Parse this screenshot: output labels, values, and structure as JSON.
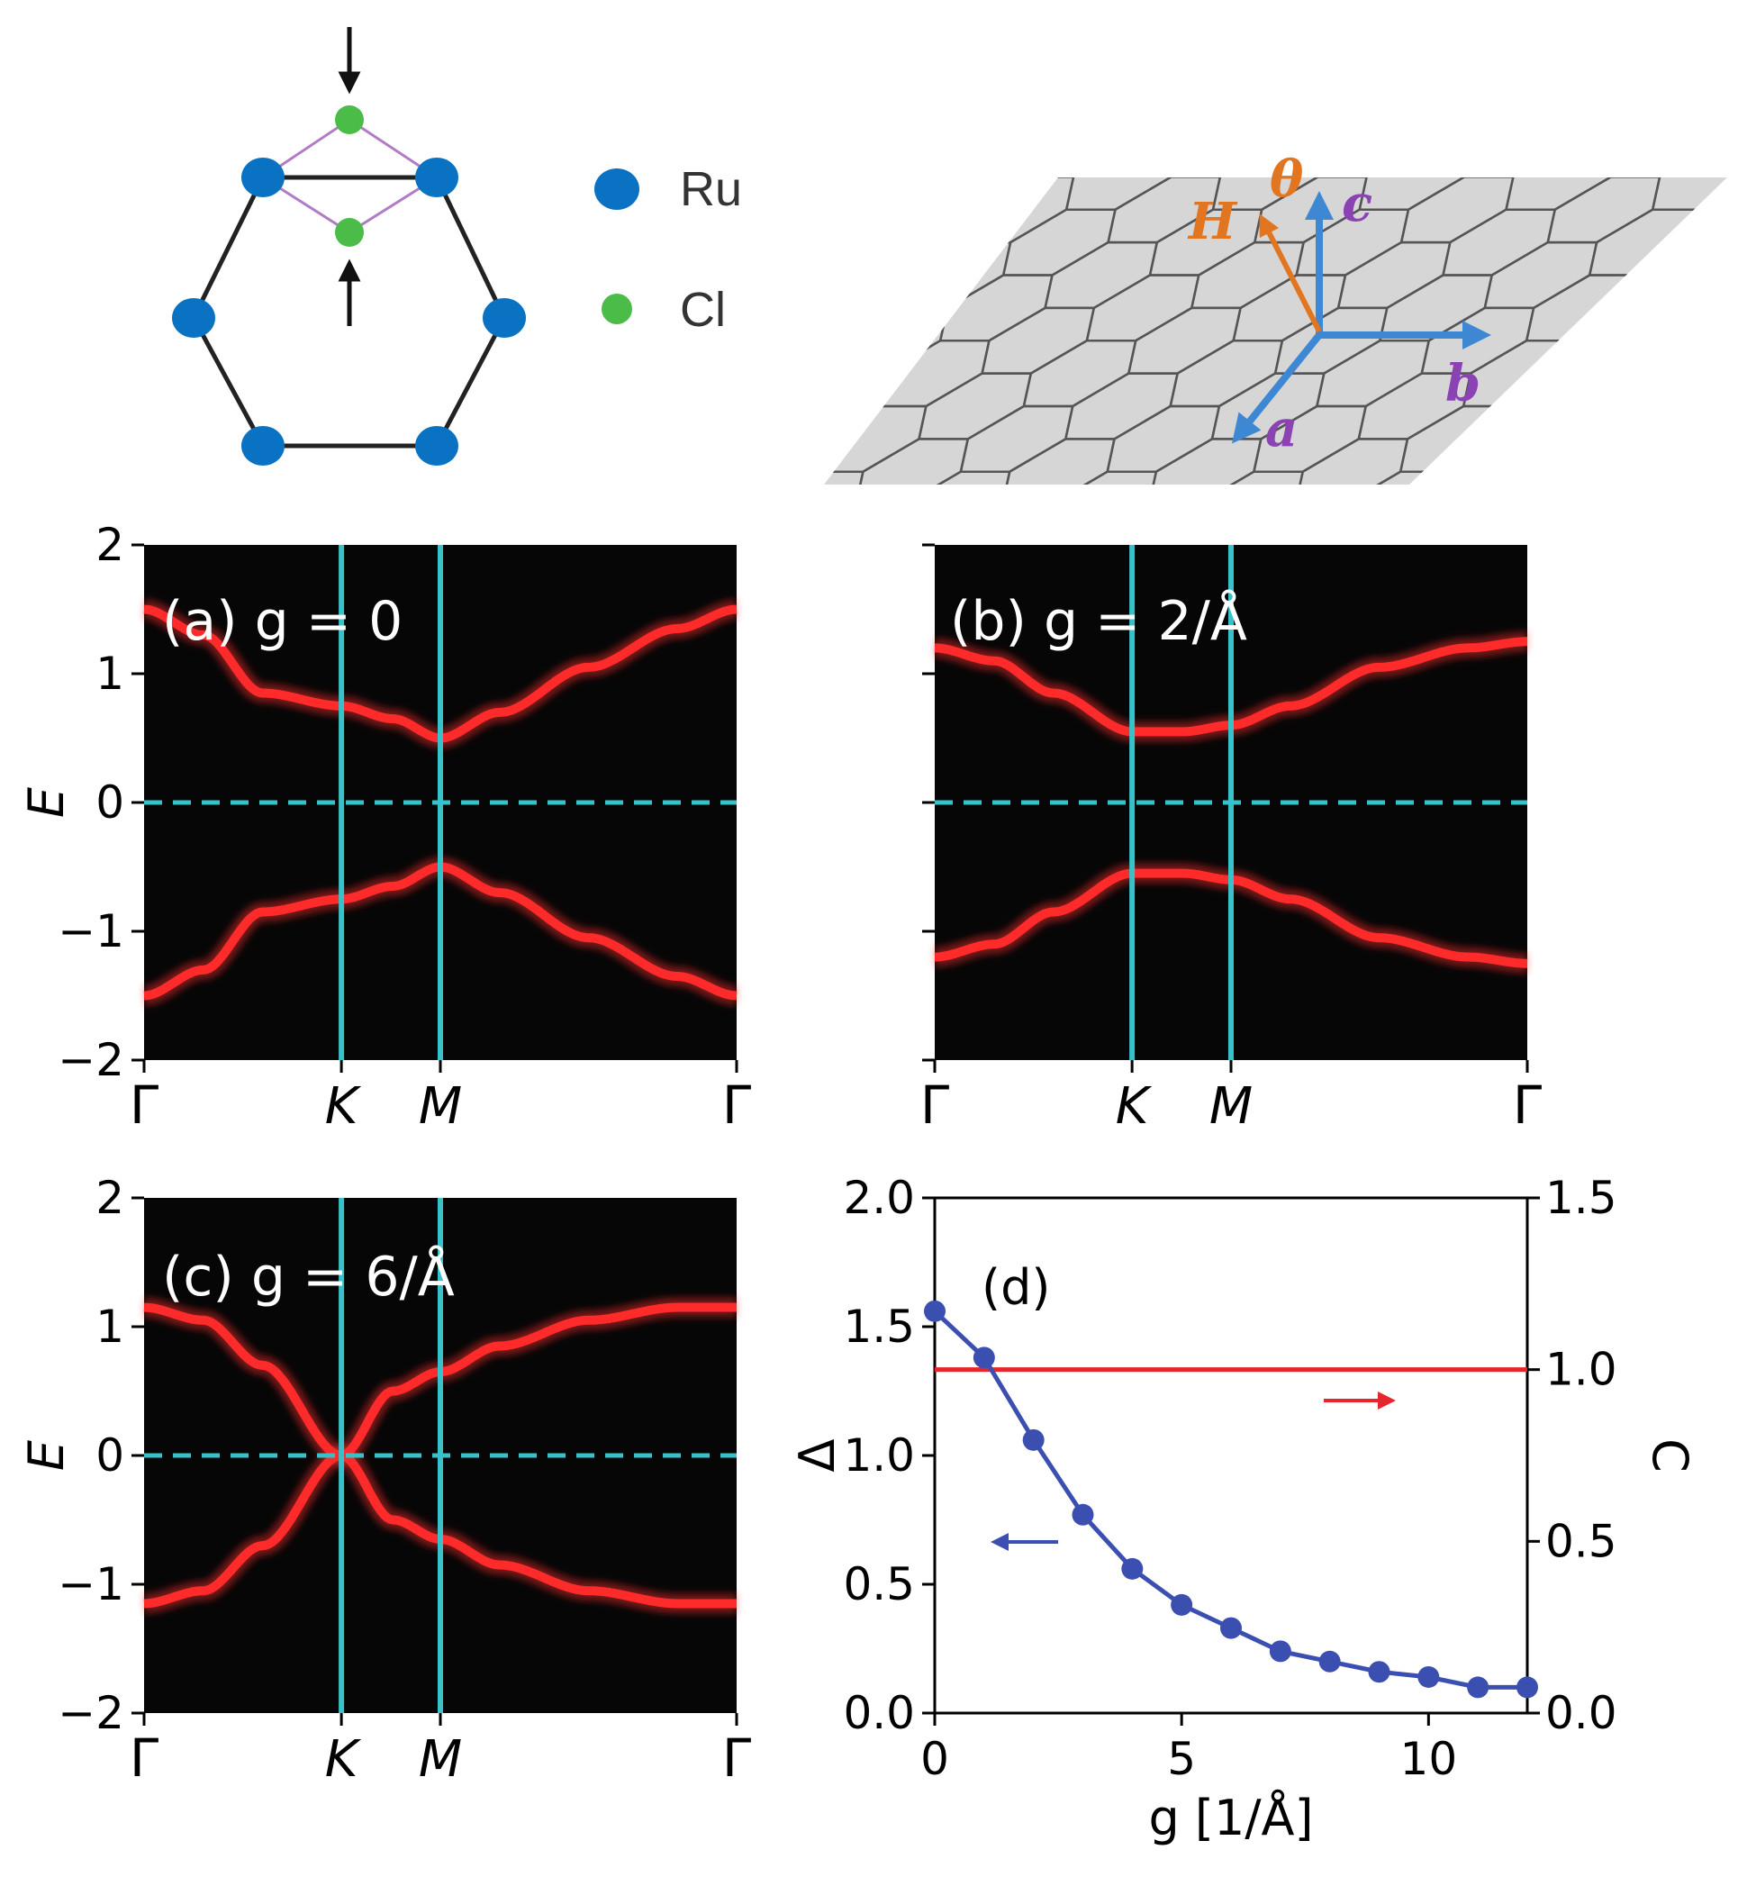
{
  "top_left": {
    "legend": [
      {
        "label": "Ru",
        "color": "#0a72c2"
      },
      {
        "label": "Cl",
        "color": "#4cbc49"
      }
    ],
    "bond_color": "#222222",
    "cl_bond_color": "#b07cc6"
  },
  "top_right": {
    "labels": {
      "theta": "θ",
      "H": "H",
      "c": "c",
      "b": "b",
      "a": "a"
    },
    "colors": {
      "axis": "#3e87d3",
      "field": "#e2751f",
      "label_purple": "#8b42b3",
      "plane": "#d6d6d6"
    }
  },
  "chart_data": [
    {
      "id": "a",
      "type": "heatmap",
      "title": "(a) g = 0",
      "ylabel": "E",
      "ylim": [
        -2,
        2
      ],
      "yticks": [
        "2",
        "1",
        "0",
        "−1",
        "−2"
      ],
      "xticks": [
        "Γ",
        "K",
        "M",
        "Γ"
      ],
      "x": [
        0,
        0.333,
        0.5,
        1.0
      ],
      "band_points": [
        0,
        0.1,
        0.2,
        0.333,
        0.42,
        0.5,
        0.6,
        0.75,
        0.9,
        1.0
      ],
      "band_upper": [
        1.5,
        1.3,
        0.85,
        0.75,
        0.65,
        0.5,
        0.7,
        1.05,
        1.35,
        1.5
      ],
      "band_lower": [
        -1.5,
        -1.3,
        -0.85,
        -0.75,
        -0.65,
        -0.5,
        -0.7,
        -1.05,
        -1.35,
        -1.5
      ],
      "colors": {
        "band": "#ff2a2a",
        "kline": "#36c2c8"
      }
    },
    {
      "id": "b",
      "type": "heatmap",
      "title": "(b) g = 2/Å",
      "ylim": [
        -2,
        2
      ],
      "xticks": [
        "Γ",
        "K",
        "M",
        "Γ"
      ],
      "x": [
        0,
        0.333,
        0.5,
        1.0
      ],
      "band_points": [
        0,
        0.1,
        0.2,
        0.333,
        0.42,
        0.5,
        0.6,
        0.75,
        0.9,
        1.0
      ],
      "band_upper": [
        1.2,
        1.1,
        0.85,
        0.55,
        0.55,
        0.6,
        0.75,
        1.05,
        1.2,
        1.25
      ],
      "band_lower": [
        -1.2,
        -1.1,
        -0.85,
        -0.55,
        -0.55,
        -0.6,
        -0.75,
        -1.05,
        -1.2,
        -1.25
      ],
      "colors": {
        "band": "#ff2a2a",
        "kline": "#36c2c8"
      }
    },
    {
      "id": "c",
      "type": "heatmap",
      "title": "(c) g = 6/Å",
      "ylabel": "E",
      "ylim": [
        -2,
        2
      ],
      "yticks": [
        "2",
        "1",
        "0",
        "−1",
        "−2"
      ],
      "xticks": [
        "Γ",
        "K",
        "M",
        "Γ"
      ],
      "x": [
        0,
        0.333,
        0.5,
        1.0
      ],
      "band_points": [
        0,
        0.1,
        0.2,
        0.333,
        0.42,
        0.5,
        0.6,
        0.75,
        0.9,
        1.0
      ],
      "band_upper": [
        1.15,
        1.05,
        0.7,
        0.0,
        0.5,
        0.65,
        0.85,
        1.05,
        1.15,
        1.15
      ],
      "band_lower": [
        -1.15,
        -1.05,
        -0.7,
        0.0,
        -0.5,
        -0.65,
        -0.85,
        -1.05,
        -1.15,
        -1.15
      ],
      "colors": {
        "band": "#ff2a2a",
        "kline": "#36c2c8"
      }
    },
    {
      "id": "d",
      "type": "line",
      "title": "(d)",
      "xlabel": "g [1/Å]",
      "ylabel": "Δ",
      "y2label": "C",
      "xlim": [
        0,
        12
      ],
      "ylim": [
        0,
        2.0
      ],
      "y2lim": [
        0,
        1.5
      ],
      "xticks": [
        "0",
        "5",
        "10"
      ],
      "yticks": [
        "0.0",
        "0.5",
        "1.0",
        "1.5",
        "2.0"
      ],
      "y2ticks": [
        "0.0",
        "0.5",
        "1.0",
        "1.5"
      ],
      "series": [
        {
          "axis": "left",
          "color": "#3a4fb0",
          "x": [
            0,
            1,
            2,
            3,
            4,
            5,
            6,
            7,
            8,
            9,
            10,
            11,
            12
          ],
          "y": [
            1.56,
            1.38,
            1.06,
            0.77,
            0.56,
            0.42,
            0.33,
            0.24,
            0.2,
            0.16,
            0.14,
            0.1,
            0.1
          ]
        },
        {
          "axis": "right",
          "color": "#e8252e",
          "x": [
            0,
            12
          ],
          "y": [
            1.0,
            1.0
          ]
        }
      ],
      "arrows": {
        "left_color": "#3a4fb0",
        "right_color": "#e8252e"
      }
    }
  ]
}
